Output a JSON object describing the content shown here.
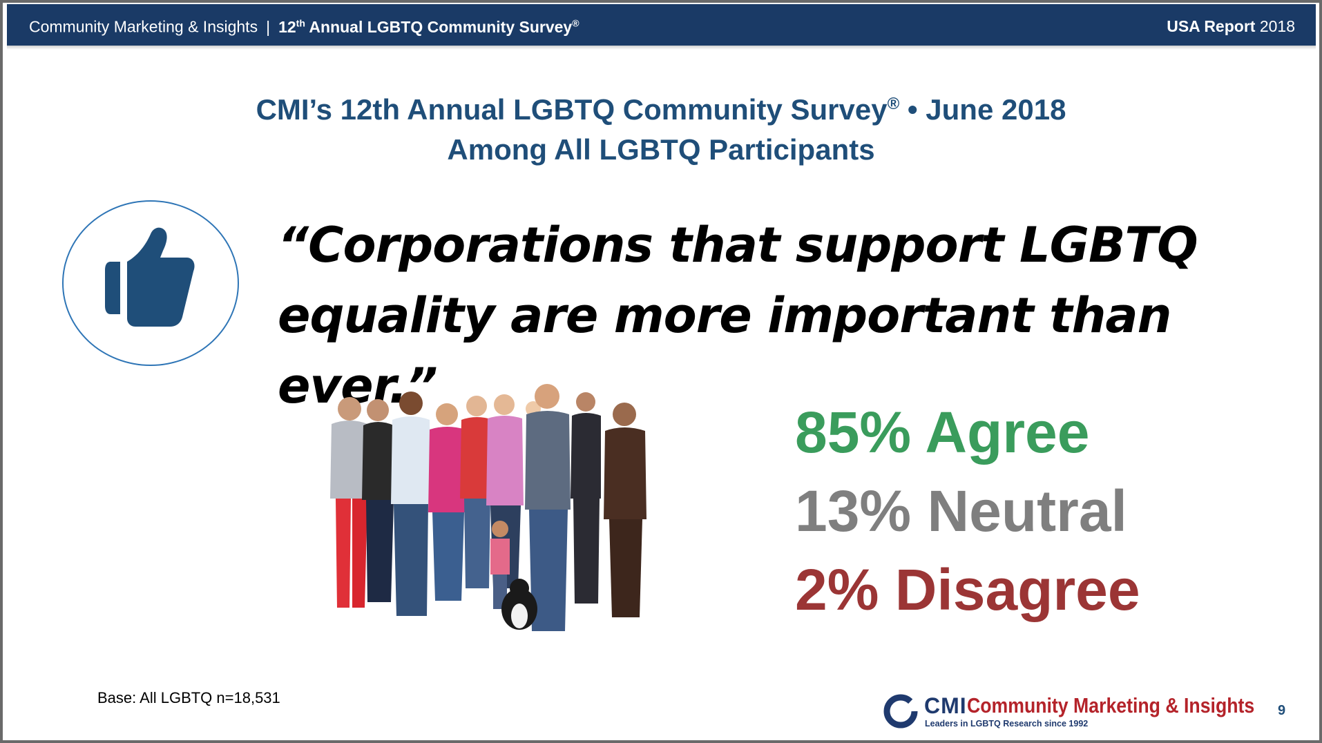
{
  "header": {
    "company": "Community Marketing & Insights",
    "separator": "|",
    "survey_prefix": "12",
    "survey_sup": "th",
    "survey_rest": " Annual LGBTQ Community Survey",
    "reg_mark": "®",
    "report_bold": "USA Report",
    "report_year": " 2018"
  },
  "title": {
    "line1_main": "CMI’s 12th Annual LGBTQ Community Survey",
    "line1_reg": "®",
    "line1_tail": " •  June 2018",
    "line2": "Among All LGBTQ Participants"
  },
  "quote": {
    "line1": "“Corporations that support LGBTQ",
    "line2": "equality are more important than ever.”"
  },
  "results": {
    "agree": "85% Agree",
    "neutral": "13% Neutral",
    "disagree": "2% Disagree"
  },
  "colors": {
    "header_bg": "#1a3a66",
    "title": "#1f4e79",
    "agree": "#3a9c5c",
    "neutral": "#7f7f7f",
    "disagree": "#9b3535",
    "logo_red": "#b4232a"
  },
  "footer": {
    "base": "Base: All LGBTQ n=18,531",
    "logo_cmi": "CMI",
    "logo_name": "Community Marketing & Insights",
    "logo_tagline": "Leaders in LGBTQ Research since 1992",
    "page_number": "9"
  },
  "icons": {
    "thumb": "thumbs-up-icon",
    "people": "group-photo",
    "logo_mark": "cmi-logo-ring"
  }
}
